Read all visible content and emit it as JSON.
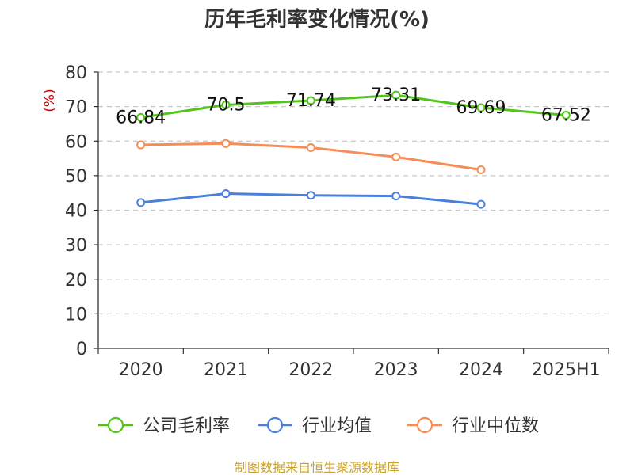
{
  "chart_data": {
    "type": "line",
    "title": "历年毛利率变化情况(%)",
    "ylabel": "(%)",
    "xlabel": "",
    "categories": [
      "2020",
      "2021",
      "2022",
      "2023",
      "2024",
      "2025H1"
    ],
    "ylim": [
      0,
      80
    ],
    "yticks": [
      "0",
      "10",
      "20",
      "30",
      "40",
      "50",
      "60",
      "70",
      "80"
    ],
    "grid": true,
    "legend_position": "bottom",
    "series": [
      {
        "name": "公司毛利率",
        "color": "#52c41a",
        "values": [
          66.84,
          70.5,
          71.74,
          73.31,
          69.69,
          67.52
        ],
        "labels": [
          "66.84",
          "70.5",
          "71.74",
          "73.31",
          "69.69",
          "67.52"
        ]
      },
      {
        "name": "行业均值",
        "color": "#4a7fdc",
        "values": [
          42.2,
          44.8,
          44.3,
          44.1,
          41.7,
          null
        ]
      },
      {
        "name": "行业中位数",
        "color": "#f78c56",
        "values": [
          58.9,
          59.3,
          58.1,
          55.4,
          51.7,
          null
        ]
      }
    ]
  },
  "source_text": "制图数据来自恒生聚源数据库"
}
